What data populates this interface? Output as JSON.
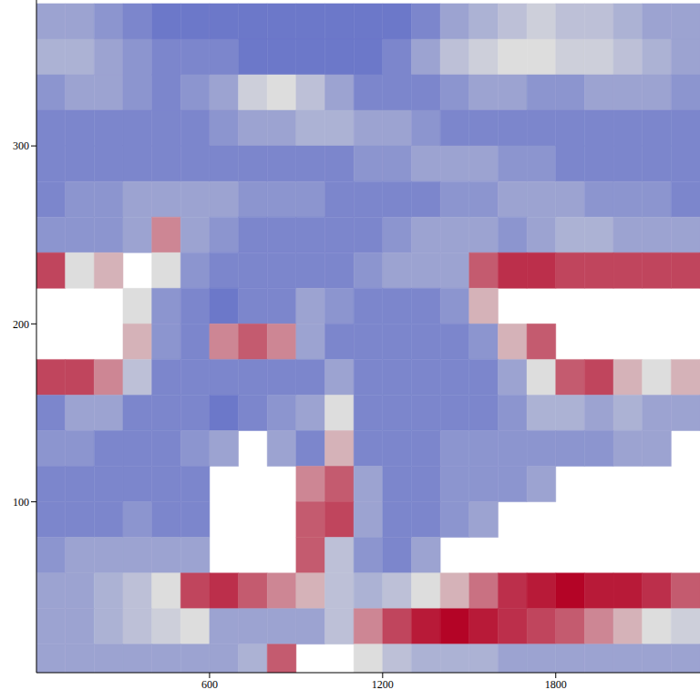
{
  "chart_data": {
    "type": "heatmap",
    "x": [
      50,
      150,
      250,
      350,
      450,
      550,
      650,
      750,
      850,
      950,
      1050,
      1150,
      1250,
      1350,
      1450,
      1550,
      1650,
      1750,
      1850,
      1950,
      2050,
      2150,
      2250
    ],
    "y": [
      370,
      350,
      330,
      310,
      290,
      270,
      250,
      230,
      210,
      190,
      170,
      150,
      130,
      110,
      90,
      70,
      50,
      30,
      10
    ],
    "z": [
      [
        0.3,
        0.3,
        0.25,
        0.2,
        0.15,
        0.15,
        0.15,
        0.15,
        0.15,
        0.15,
        0.15,
        0.15,
        0.15,
        0.2,
        0.3,
        0.35,
        0.4,
        0.45,
        0.4,
        0.4,
        0.35,
        0.3,
        0.3
      ],
      [
        0.35,
        0.35,
        0.3,
        0.25,
        0.2,
        0.2,
        0.2,
        0.15,
        0.15,
        0.15,
        0.15,
        0.15,
        0.2,
        0.3,
        0.4,
        0.45,
        0.5,
        0.5,
        0.45,
        0.45,
        0.4,
        0.35,
        0.3
      ],
      [
        0.25,
        0.3,
        0.3,
        0.25,
        0.2,
        0.25,
        0.3,
        0.45,
        0.5,
        0.4,
        0.3,
        0.2,
        0.2,
        0.2,
        0.25,
        0.3,
        0.3,
        0.25,
        0.25,
        0.3,
        0.3,
        0.3,
        0.25
      ],
      [
        0.2,
        0.2,
        0.2,
        0.2,
        0.2,
        0.2,
        0.25,
        0.3,
        0.3,
        0.35,
        0.35,
        0.3,
        0.3,
        0.25,
        0.2,
        0.2,
        0.2,
        0.2,
        0.2,
        0.2,
        0.2,
        0.2,
        0.2
      ],
      [
        0.2,
        0.2,
        0.2,
        0.2,
        0.2,
        0.2,
        0.2,
        0.2,
        0.2,
        0.2,
        0.2,
        0.25,
        0.25,
        0.3,
        0.3,
        0.3,
        0.25,
        0.25,
        0.2,
        0.2,
        0.2,
        0.2,
        0.2
      ],
      [
        0.2,
        0.25,
        0.25,
        0.3,
        0.3,
        0.3,
        0.3,
        0.25,
        0.25,
        0.25,
        0.2,
        0.2,
        0.2,
        0.2,
        0.25,
        0.25,
        0.3,
        0.3,
        0.3,
        0.25,
        0.25,
        0.25,
        0.2
      ],
      [
        0.25,
        0.25,
        0.25,
        0.3,
        0.7,
        0.3,
        0.25,
        0.2,
        0.2,
        0.2,
        0.2,
        0.2,
        0.25,
        0.3,
        0.3,
        0.3,
        0.25,
        0.3,
        0.35,
        0.35,
        0.3,
        0.3,
        0.3
      ],
      [
        0.85,
        0.5,
        0.6,
        null,
        0.5,
        0.25,
        0.2,
        0.2,
        0.2,
        0.2,
        0.2,
        0.25,
        0.3,
        0.3,
        0.3,
        0.8,
        0.9,
        0.9,
        0.85,
        0.85,
        0.85,
        0.85,
        0.85
      ],
      [
        null,
        null,
        null,
        0.5,
        0.25,
        0.2,
        0.15,
        0.2,
        0.2,
        0.3,
        0.25,
        0.2,
        0.2,
        0.2,
        0.25,
        0.6,
        null,
        null,
        null,
        null,
        null,
        null,
        null
      ],
      [
        null,
        null,
        null,
        0.6,
        0.25,
        0.2,
        0.7,
        0.8,
        0.7,
        0.3,
        0.2,
        0.2,
        0.2,
        0.2,
        0.2,
        0.25,
        0.6,
        0.8,
        null,
        null,
        null,
        null,
        null
      ],
      [
        0.85,
        0.85,
        0.7,
        0.4,
        0.2,
        0.2,
        0.2,
        0.2,
        0.2,
        0.2,
        0.3,
        0.2,
        0.2,
        0.2,
        0.2,
        0.2,
        0.3,
        0.5,
        0.8,
        0.85,
        0.6,
        0.5,
        0.6
      ],
      [
        0.2,
        0.3,
        0.3,
        0.2,
        0.2,
        0.2,
        0.15,
        0.2,
        0.25,
        0.3,
        0.5,
        0.2,
        0.2,
        0.2,
        0.2,
        0.2,
        0.25,
        0.35,
        0.35,
        0.3,
        0.35,
        0.3,
        0.3
      ],
      [
        0.25,
        0.25,
        0.2,
        0.2,
        0.2,
        0.25,
        0.3,
        null,
        0.3,
        0.2,
        0.6,
        0.2,
        0.2,
        0.2,
        0.25,
        0.25,
        0.25,
        0.25,
        0.25,
        0.25,
        0.3,
        0.3,
        null
      ],
      [
        0.2,
        0.2,
        0.2,
        0.2,
        0.2,
        0.2,
        null,
        null,
        null,
        0.7,
        0.8,
        0.3,
        0.2,
        0.2,
        0.25,
        0.25,
        0.25,
        0.3,
        null,
        null,
        null,
        null,
        null
      ],
      [
        0.2,
        0.2,
        0.2,
        0.25,
        0.2,
        0.2,
        null,
        null,
        null,
        0.8,
        0.85,
        0.3,
        0.2,
        0.2,
        0.25,
        0.3,
        null,
        null,
        null,
        null,
        null,
        null,
        null
      ],
      [
        0.25,
        0.3,
        0.3,
        0.3,
        0.3,
        0.3,
        null,
        null,
        null,
        0.8,
        0.4,
        0.25,
        0.2,
        0.3,
        null,
        null,
        null,
        null,
        null,
        null,
        null,
        null,
        null
      ],
      [
        0.3,
        0.3,
        0.35,
        0.4,
        0.5,
        0.85,
        0.9,
        0.8,
        0.7,
        0.6,
        0.4,
        0.35,
        0.4,
        0.5,
        0.6,
        0.75,
        0.9,
        0.95,
        1.0,
        0.95,
        0.95,
        0.9,
        0.8
      ],
      [
        0.3,
        0.3,
        0.35,
        0.4,
        0.45,
        0.5,
        0.3,
        0.3,
        0.3,
        0.3,
        0.4,
        0.7,
        0.85,
        0.95,
        1.0,
        0.95,
        0.9,
        0.85,
        0.8,
        0.7,
        0.6,
        0.5,
        0.45
      ],
      [
        0.3,
        0.3,
        0.3,
        0.3,
        0.3,
        0.3,
        0.3,
        0.35,
        0.8,
        null,
        null,
        0.5,
        0.4,
        0.35,
        0.35,
        0.35,
        0.3,
        0.3,
        0.3,
        0.3,
        0.3,
        0.3,
        0.3
      ]
    ],
    "xlim": [
      0,
      2300
    ],
    "ylim": [
      4,
      382
    ],
    "xticks": [
      600,
      1200,
      1800
    ],
    "yticks": [
      100,
      200,
      300
    ],
    "zlim": [
      0,
      1
    ],
    "color": "coolwarm"
  }
}
